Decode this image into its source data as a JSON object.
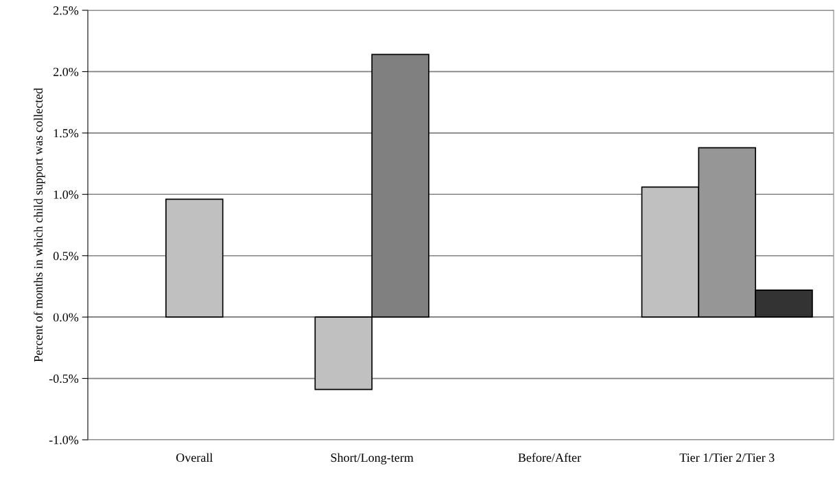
{
  "chart_data": {
    "type": "bar",
    "ylabel": "Percent of months in which child support was collected",
    "categories": [
      "Overall",
      "Short/Long-term",
      "Before/After",
      "Tier 1/Tier 2/Tier 3"
    ],
    "series": [
      {
        "colors": [
          "#c0c0c0",
          "#c0c0c0",
          "#c0c0c0",
          "#c0c0c0"
        ],
        "values": [
          0.96,
          -0.59,
          null,
          1.06
        ]
      },
      {
        "colors": [
          "#808080",
          "#808080",
          "#969696",
          "#969696"
        ],
        "values": [
          null,
          2.14,
          null,
          1.38
        ]
      },
      {
        "colors": [
          "#333333",
          "#333333",
          "#333333",
          "#333333"
        ],
        "values": [
          null,
          null,
          null,
          0.22
        ]
      }
    ],
    "ylim": [
      -1.0,
      2.5
    ],
    "yticks": [
      {
        "value": -1.0,
        "label": "-1.0%"
      },
      {
        "value": -0.5,
        "label": "-0.5%"
      },
      {
        "value": 0,
        "label": "0.0%"
      },
      {
        "value": 0.5,
        "label": "0.5%"
      },
      {
        "value": 1.0,
        "label": "1.0%"
      },
      {
        "value": 1.5,
        "label": "1.5%"
      },
      {
        "value": 2.0,
        "label": "2.0%"
      },
      {
        "value": 2.5,
        "label": "2.5%"
      }
    ],
    "grid": "y",
    "legend": false
  }
}
